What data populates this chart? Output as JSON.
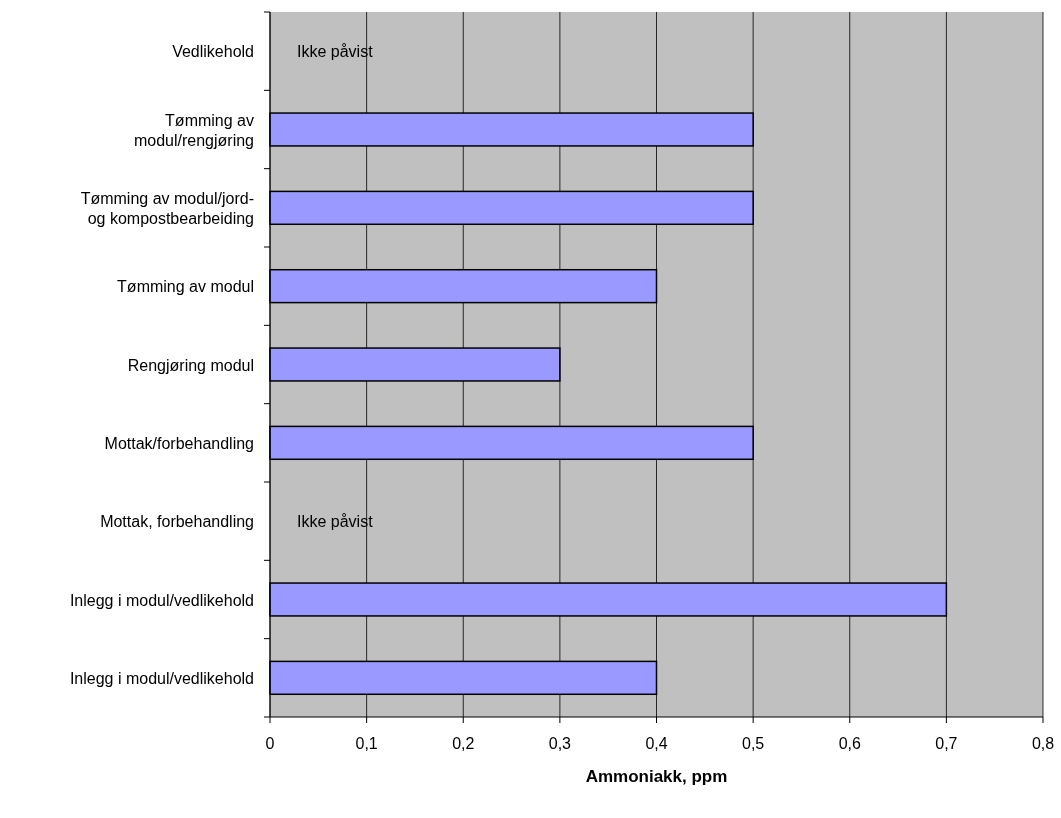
{
  "chart_data": {
    "type": "bar",
    "orientation": "horizontal",
    "xlabel": "Ammoniakk, ppm",
    "categories": [
      "Vedlikehold",
      "Tømming av modul/rengjøring",
      "Tømming av modul/jord- og kompostbearbeiding",
      "Tømming av modul",
      "Rengjøring modul",
      "Mottak/forbehandling",
      "Mottak, forbehandling",
      "Inlegg i modul/vedlikehold",
      "Inlegg i modul/vedlikehold"
    ],
    "values": [
      null,
      0.5,
      0.5,
      0.4,
      0.3,
      0.5,
      null,
      0.7,
      0.4
    ],
    "color": "#9999ff",
    "xlim": [
      0,
      0.8
    ],
    "xticks": [
      0,
      {
        "value": 0.1,
        "label": "0,1"
      },
      {
        "value": 0.2,
        "label": "0,2"
      },
      {
        "value": 0.3,
        "label": "0,3"
      },
      {
        "value": 0.4,
        "label": "0,4"
      },
      {
        "value": 0.5,
        "label": "0,5"
      },
      {
        "value": 0.6,
        "label": "0,6"
      },
      {
        "value": 0.7,
        "label": "0,7"
      },
      {
        "value": 0.8,
        "label": "0,8"
      }
    ],
    "grid": "x",
    "annotations": [
      "Ikke påvist",
      "Ikke påvist"
    ]
  }
}
